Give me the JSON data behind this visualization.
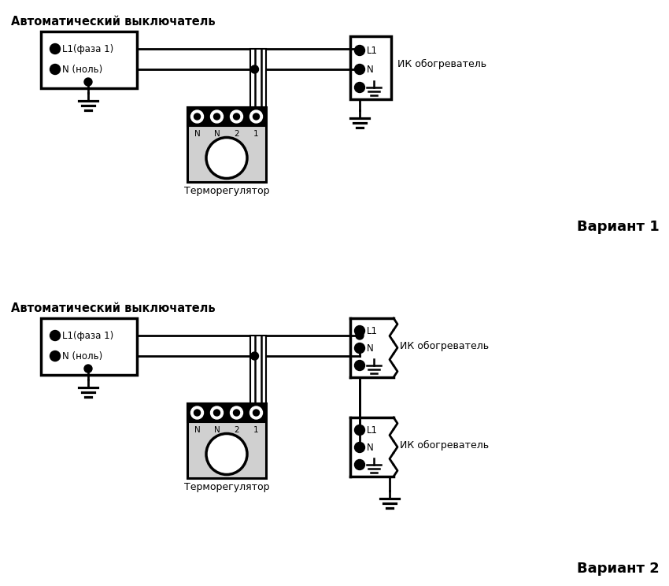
{
  "bg": "#ffffff",
  "lc": "#000000",
  "title_av": "Автоматический выключатель",
  "lbl_L1f": "L1(фаза 1)",
  "lbl_Nn": "N (ноль)",
  "lbl_termo": "Терморегулятор",
  "lbl_ik": "ИК обогреватель",
  "lbl_v1": "Вариант 1",
  "lbl_v2": "Вариант 2",
  "lbl_L1": "L1",
  "lbl_N": "N",
  "term_labels": [
    "N",
    "N",
    "2",
    "1"
  ]
}
